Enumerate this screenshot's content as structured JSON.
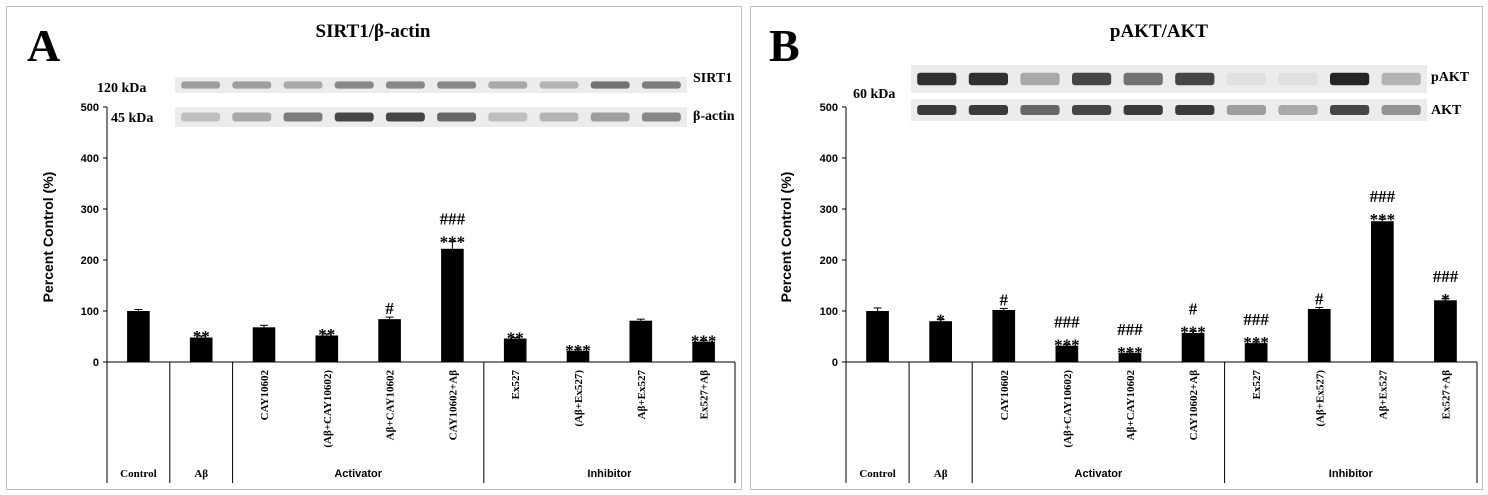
{
  "chart_data": [
    {
      "type": "bar",
      "panel_letter": "A",
      "title": "SIRT1/β-actin",
      "ylabel": "Percent Control (%)",
      "ylim": [
        0,
        500
      ],
      "yticks": [
        "0",
        "100",
        "200",
        "300",
        "400",
        "500"
      ],
      "categories": [
        "Control",
        "Aβ",
        "CAY10602",
        "(Aβ+CAY10602)",
        "Aβ+CAY10602",
        "CAY10602+Aβ",
        "Ex527",
        "(Aβ+Ex527)",
        "Aβ+Ex527",
        "Ex527+Aβ"
      ],
      "values": [
        100,
        48,
        68,
        52,
        84,
        222,
        46,
        22,
        81,
        40
      ],
      "errors": [
        3,
        3,
        4,
        3,
        4,
        14,
        2,
        2,
        3,
        2
      ],
      "significance_star": [
        "",
        "**",
        "",
        "**",
        "",
        "***",
        "**",
        "***",
        "",
        "***"
      ],
      "significance_hash": [
        "",
        "",
        "",
        "",
        "#",
        "###",
        "",
        "",
        "",
        ""
      ],
      "groups": [
        {
          "label": "",
          "start": 0,
          "end": 0
        },
        {
          "label": "",
          "start": 1,
          "end": 1
        },
        {
          "label": "Activator",
          "start": 2,
          "end": 5
        },
        {
          "label": "Inhibitor",
          "start": 6,
          "end": 9
        }
      ],
      "blot": {
        "labels": [
          "SIRT1",
          "β-actin"
        ],
        "sizes": [
          "120 kDa",
          "45 kDa"
        ],
        "band_intensity": [
          [
            0.35,
            0.35,
            0.3,
            0.45,
            0.45,
            0.45,
            0.3,
            0.25,
            0.55,
            0.5
          ],
          [
            0.2,
            0.3,
            0.5,
            0.75,
            0.75,
            0.6,
            0.2,
            0.25,
            0.35,
            0.45
          ]
        ]
      }
    },
    {
      "type": "bar",
      "panel_letter": "B",
      "title": "pAKT/AKT",
      "ylabel": "Percent Control (%)",
      "ylim": [
        0,
        500
      ],
      "yticks": [
        "0",
        "100",
        "200",
        "300",
        "400",
        "500"
      ],
      "categories": [
        "Control",
        "Aβ",
        "CAY10602",
        "(Aβ+CAY10602)",
        "Aβ+CAY10602",
        "CAY10602+Aβ",
        "Ex527",
        "(Aβ+Ex527)",
        "Aβ+Ex527",
        "Ex527+Aβ"
      ],
      "values": [
        100,
        80,
        102,
        32,
        18,
        57,
        37,
        104,
        276,
        121
      ],
      "errors": [
        6,
        3,
        3,
        2,
        2,
        3,
        2,
        3,
        4,
        3
      ],
      "significance_star": [
        "",
        "*",
        "",
        "***",
        "***",
        "***",
        "***",
        "",
        "***",
        "*"
      ],
      "significance_hash": [
        "",
        "",
        "#",
        "###",
        "###",
        "#",
        "###",
        "#",
        "###",
        "###"
      ],
      "groups": [
        {
          "label": "",
          "start": 0,
          "end": 0
        },
        {
          "label": "",
          "start": 1,
          "end": 1
        },
        {
          "label": "Activator",
          "start": 2,
          "end": 5
        },
        {
          "label": "Inhibitor",
          "start": 6,
          "end": 9
        }
      ],
      "blot": {
        "labels": [
          "pAKT",
          "AKT"
        ],
        "sizes": [
          "60 kDa"
        ],
        "band_intensity": [
          [
            0.85,
            0.85,
            0.3,
            0.75,
            0.55,
            0.75,
            0.05,
            0.05,
            0.9,
            0.25
          ],
          [
            0.8,
            0.8,
            0.6,
            0.75,
            0.8,
            0.8,
            0.35,
            0.3,
            0.75,
            0.4
          ]
        ]
      }
    }
  ]
}
